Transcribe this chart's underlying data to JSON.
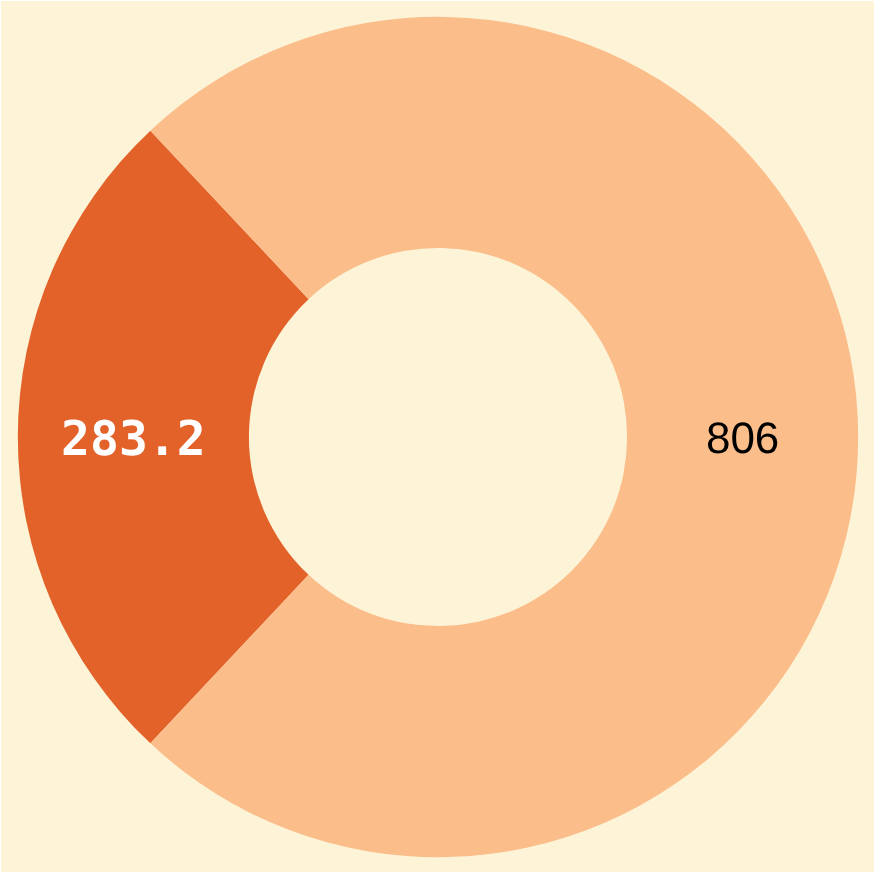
{
  "chart_data": {
    "type": "donut",
    "categories": [
      null,
      null
    ],
    "values": [
      283.2,
      806
    ],
    "colors": [
      "#e2622a",
      "#fbbd8a"
    ],
    "data_labels": true
  }
}
